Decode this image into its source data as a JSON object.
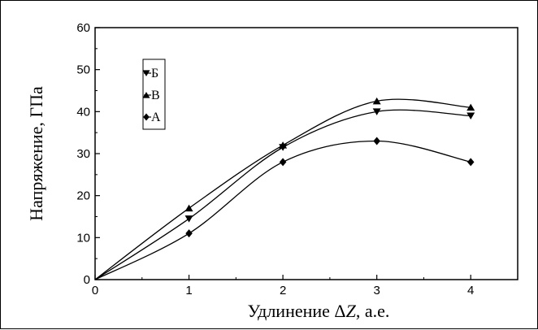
{
  "chart_data": {
    "type": "line",
    "xlabel_prefix": "Удлинение Δ",
    "xlabel_var": "Z",
    "xlabel_suffix": ", а.е.",
    "ylabel": "Напряжение, ГПа",
    "xlim": [
      0,
      4.5
    ],
    "ylim": [
      0,
      60
    ],
    "xticks": [
      0,
      1,
      2,
      3,
      4
    ],
    "yticks": [
      0,
      10,
      20,
      30,
      40,
      50,
      60
    ],
    "grid": false,
    "legend_position": "top-left",
    "series": [
      {
        "name": "Б",
        "marker": "triangle-down",
        "x": [
          0,
          1,
          2,
          3,
          4
        ],
        "y": [
          0,
          14.5,
          31.5,
          40,
          39
        ]
      },
      {
        "name": "В",
        "marker": "triangle-up",
        "x": [
          0,
          1,
          2,
          3,
          4
        ],
        "y": [
          0,
          17,
          32,
          42.5,
          41
        ]
      },
      {
        "name": "А",
        "marker": "diamond",
        "x": [
          0,
          1,
          2,
          3,
          4
        ],
        "y": [
          0,
          11,
          28,
          33,
          28
        ]
      }
    ]
  }
}
